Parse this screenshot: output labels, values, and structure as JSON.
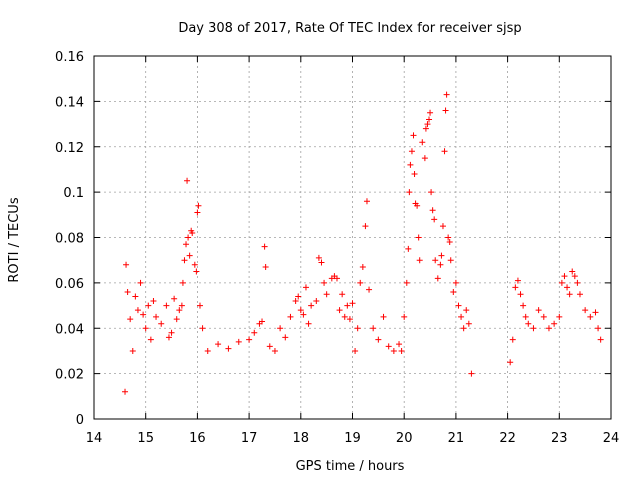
{
  "chart_data": {
    "type": "scatter",
    "title": "Day 308 of 2017, Rate Of TEC Index for receiver sjsp",
    "xlabel": "GPS time / hours",
    "ylabel": "ROTI / TECUs",
    "xlim": [
      14,
      24
    ],
    "ylim": [
      0,
      0.16
    ],
    "xticks": [
      14,
      15,
      16,
      17,
      18,
      19,
      20,
      21,
      22,
      23,
      24
    ],
    "yticks": [
      0,
      0.02,
      0.04,
      0.06,
      0.08,
      0.1,
      0.12,
      0.14,
      0.16
    ],
    "xtick_labels": [
      "14",
      "15",
      "16",
      "17",
      "18",
      "19",
      "20",
      "21",
      "22",
      "23",
      "24"
    ],
    "ytick_labels": [
      "0",
      "0.02",
      "0.04",
      "0.06",
      "0.08",
      "0.1",
      "0.12",
      "0.14",
      "0.16"
    ],
    "grid": true,
    "marker": "+",
    "color": "#ff0000",
    "series": [
      {
        "name": "ROTI",
        "points": [
          [
            14.6,
            0.012
          ],
          [
            14.62,
            0.068
          ],
          [
            14.65,
            0.056
          ],
          [
            14.7,
            0.044
          ],
          [
            14.75,
            0.03
          ],
          [
            14.8,
            0.054
          ],
          [
            14.85,
            0.048
          ],
          [
            14.9,
            0.06
          ],
          [
            14.95,
            0.046
          ],
          [
            15.0,
            0.04
          ],
          [
            15.05,
            0.05
          ],
          [
            15.1,
            0.035
          ],
          [
            15.15,
            0.052
          ],
          [
            15.2,
            0.045
          ],
          [
            15.3,
            0.042
          ],
          [
            15.4,
            0.05
          ],
          [
            15.45,
            0.036
          ],
          [
            15.5,
            0.038
          ],
          [
            15.55,
            0.053
          ],
          [
            15.6,
            0.044
          ],
          [
            15.65,
            0.048
          ],
          [
            15.7,
            0.05
          ],
          [
            15.72,
            0.06
          ],
          [
            15.75,
            0.07
          ],
          [
            15.78,
            0.077
          ],
          [
            15.8,
            0.105
          ],
          [
            15.82,
            0.08
          ],
          [
            15.85,
            0.072
          ],
          [
            15.88,
            0.083
          ],
          [
            15.9,
            0.082
          ],
          [
            15.95,
            0.068
          ],
          [
            15.98,
            0.065
          ],
          [
            16.0,
            0.091
          ],
          [
            16.02,
            0.094
          ],
          [
            16.05,
            0.05
          ],
          [
            16.1,
            0.04
          ],
          [
            16.2,
            0.03
          ],
          [
            16.4,
            0.033
          ],
          [
            16.6,
            0.031
          ],
          [
            16.8,
            0.034
          ],
          [
            17.0,
            0.035
          ],
          [
            17.1,
            0.038
          ],
          [
            17.2,
            0.042
          ],
          [
            17.25,
            0.043
          ],
          [
            17.3,
            0.076
          ],
          [
            17.32,
            0.067
          ],
          [
            17.4,
            0.032
          ],
          [
            17.5,
            0.03
          ],
          [
            17.6,
            0.04
          ],
          [
            17.7,
            0.036
          ],
          [
            17.8,
            0.045
          ],
          [
            17.9,
            0.052
          ],
          [
            17.95,
            0.054
          ],
          [
            18.0,
            0.048
          ],
          [
            18.05,
            0.046
          ],
          [
            18.1,
            0.058
          ],
          [
            18.15,
            0.042
          ],
          [
            18.2,
            0.05
          ],
          [
            18.3,
            0.052
          ],
          [
            18.35,
            0.071
          ],
          [
            18.4,
            0.069
          ],
          [
            18.45,
            0.06
          ],
          [
            18.5,
            0.055
          ],
          [
            18.6,
            0.062
          ],
          [
            18.65,
            0.063
          ],
          [
            18.7,
            0.062
          ],
          [
            18.75,
            0.048
          ],
          [
            18.8,
            0.055
          ],
          [
            18.85,
            0.045
          ],
          [
            18.9,
            0.05
          ],
          [
            18.95,
            0.044
          ],
          [
            19.0,
            0.051
          ],
          [
            19.05,
            0.03
          ],
          [
            19.1,
            0.04
          ],
          [
            19.15,
            0.06
          ],
          [
            19.2,
            0.067
          ],
          [
            19.25,
            0.085
          ],
          [
            19.28,
            0.096
          ],
          [
            19.32,
            0.057
          ],
          [
            19.4,
            0.04
          ],
          [
            19.5,
            0.035
          ],
          [
            19.6,
            0.045
          ],
          [
            19.7,
            0.032
          ],
          [
            19.8,
            0.03
          ],
          [
            19.9,
            0.033
          ],
          [
            19.95,
            0.03
          ],
          [
            20.0,
            0.045
          ],
          [
            20.05,
            0.06
          ],
          [
            20.08,
            0.075
          ],
          [
            20.1,
            0.1
          ],
          [
            20.12,
            0.112
          ],
          [
            20.15,
            0.118
          ],
          [
            20.18,
            0.125
          ],
          [
            20.2,
            0.108
          ],
          [
            20.22,
            0.095
          ],
          [
            20.25,
            0.094
          ],
          [
            20.28,
            0.08
          ],
          [
            20.3,
            0.07
          ],
          [
            20.35,
            0.122
          ],
          [
            20.4,
            0.115
          ],
          [
            20.42,
            0.128
          ],
          [
            20.45,
            0.13
          ],
          [
            20.48,
            0.132
          ],
          [
            20.5,
            0.135
          ],
          [
            20.52,
            0.1
          ],
          [
            20.55,
            0.092
          ],
          [
            20.58,
            0.088
          ],
          [
            20.6,
            0.07
          ],
          [
            20.65,
            0.062
          ],
          [
            20.7,
            0.068
          ],
          [
            20.72,
            0.072
          ],
          [
            20.75,
            0.085
          ],
          [
            20.78,
            0.118
          ],
          [
            20.8,
            0.136
          ],
          [
            20.82,
            0.143
          ],
          [
            20.85,
            0.08
          ],
          [
            20.88,
            0.078
          ],
          [
            20.9,
            0.07
          ],
          [
            20.95,
            0.056
          ],
          [
            21.0,
            0.06
          ],
          [
            21.05,
            0.05
          ],
          [
            21.1,
            0.045
          ],
          [
            21.15,
            0.04
          ],
          [
            21.2,
            0.048
          ],
          [
            21.25,
            0.042
          ],
          [
            21.3,
            0.02
          ],
          [
            22.05,
            0.025
          ],
          [
            22.1,
            0.035
          ],
          [
            22.15,
            0.058
          ],
          [
            22.2,
            0.061
          ],
          [
            22.25,
            0.055
          ],
          [
            22.3,
            0.05
          ],
          [
            22.35,
            0.045
          ],
          [
            22.4,
            0.042
          ],
          [
            22.5,
            0.04
          ],
          [
            22.6,
            0.048
          ],
          [
            22.7,
            0.045
          ],
          [
            22.8,
            0.04
          ],
          [
            22.9,
            0.042
          ],
          [
            23.0,
            0.045
          ],
          [
            23.05,
            0.06
          ],
          [
            23.1,
            0.063
          ],
          [
            23.15,
            0.058
          ],
          [
            23.2,
            0.055
          ],
          [
            23.25,
            0.065
          ],
          [
            23.3,
            0.063
          ],
          [
            23.35,
            0.06
          ],
          [
            23.4,
            0.055
          ],
          [
            23.5,
            0.048
          ],
          [
            23.6,
            0.045
          ],
          [
            23.7,
            0.047
          ],
          [
            23.75,
            0.04
          ],
          [
            23.8,
            0.035
          ]
        ]
      }
    ]
  }
}
